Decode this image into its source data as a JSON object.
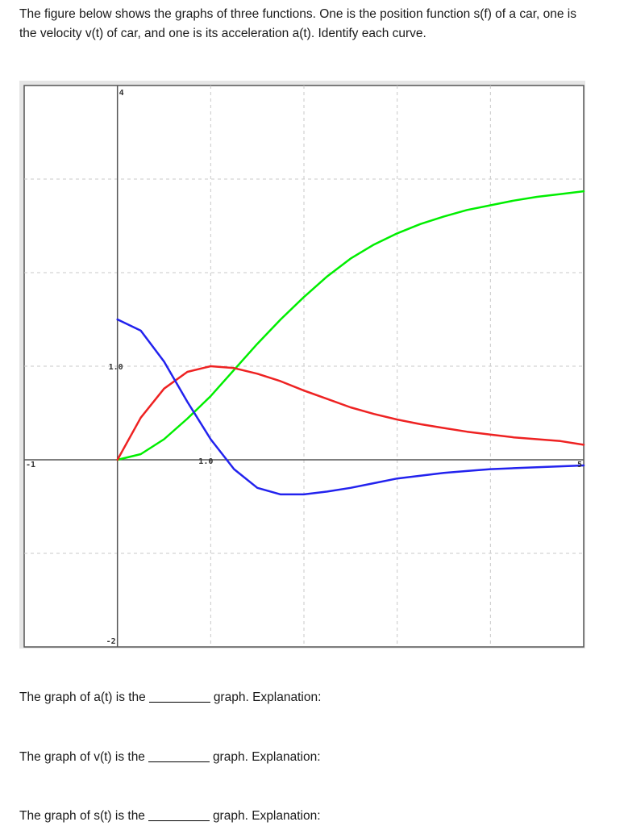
{
  "intro": {
    "line1": "The figure below shows the graphs of three functions. One is the position function s(f) of a car, one is",
    "line2": "the velocity v(t) of car, and one is its acceleration a(t). Identify each curve."
  },
  "chart_data": {
    "type": "line",
    "title": "",
    "xlabel": "",
    "ylabel": "",
    "xlim": [
      -1,
      5
    ],
    "ylim": [
      -2,
      4
    ],
    "grid": true,
    "tick_labels": {
      "x_min": "-1",
      "x_max": "5",
      "x_mid": "1.0",
      "y_max": "4",
      "y_min": "-2",
      "y_mid": "1.0"
    },
    "series": [
      {
        "color": "#00ee00",
        "x": [
          0,
          0.25,
          0.5,
          0.75,
          1.0,
          1.25,
          1.5,
          1.75,
          2.0,
          2.25,
          2.5,
          2.75,
          3.0,
          3.25,
          3.5,
          3.75,
          4.0,
          4.25,
          4.5,
          4.75,
          5.0
        ],
        "y": [
          0,
          0.06,
          0.22,
          0.44,
          0.68,
          0.96,
          1.24,
          1.5,
          1.74,
          1.96,
          2.15,
          2.3,
          2.42,
          2.52,
          2.6,
          2.67,
          2.72,
          2.77,
          2.81,
          2.84,
          2.87
        ]
      },
      {
        "color": "#ee2222",
        "x": [
          0,
          0.25,
          0.5,
          0.75,
          1.0,
          1.25,
          1.5,
          1.75,
          2.0,
          2.25,
          2.5,
          2.75,
          3.0,
          3.25,
          3.5,
          3.75,
          4.0,
          4.25,
          4.5,
          4.75,
          5.0
        ],
        "y": [
          0,
          0.45,
          0.76,
          0.94,
          1.0,
          0.98,
          0.92,
          0.84,
          0.74,
          0.65,
          0.56,
          0.49,
          0.43,
          0.38,
          0.34,
          0.3,
          0.27,
          0.24,
          0.22,
          0.2,
          0.16
        ]
      },
      {
        "color": "#2222ee",
        "x": [
          0,
          0.25,
          0.5,
          0.75,
          1.0,
          1.25,
          1.5,
          1.75,
          2.0,
          2.25,
          2.5,
          2.75,
          3.0,
          3.25,
          3.5,
          3.75,
          4.0,
          4.25,
          4.5,
          4.75,
          5.0
        ],
        "y": [
          1.5,
          1.38,
          1.05,
          0.62,
          0.22,
          -0.1,
          -0.3,
          -0.37,
          -0.37,
          -0.34,
          -0.3,
          -0.25,
          -0.2,
          -0.17,
          -0.14,
          -0.12,
          -0.1,
          -0.09,
          -0.08,
          -0.07,
          -0.06
        ]
      }
    ]
  },
  "questions": [
    {
      "prefix": "The graph of a(t) is the",
      "suffix": "graph. Explanation:"
    },
    {
      "prefix": "The graph of v(t) is the",
      "suffix": "graph. Explanation:"
    },
    {
      "prefix": "The graph of s(t) is the",
      "suffix": "graph. Explanation:"
    }
  ]
}
